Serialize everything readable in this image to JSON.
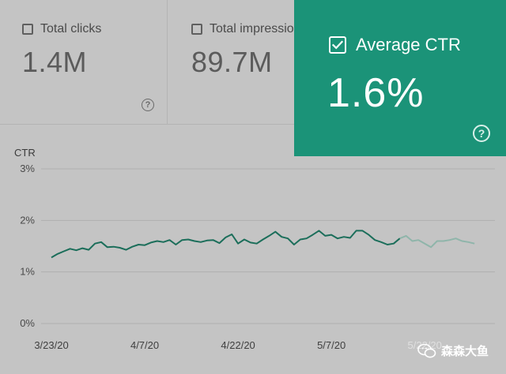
{
  "metrics": {
    "total_clicks": {
      "label": "Total clicks",
      "value": "1.4M",
      "help_icon": "?"
    },
    "total_impressions": {
      "label": "Total impressions",
      "value": "89.7M"
    },
    "average_ctr": {
      "label": "Average CTR",
      "value": "1.6%",
      "help_icon": "?",
      "checked": true,
      "color": "#1b9378"
    }
  },
  "watermark": {
    "text": "森森大鱼"
  },
  "chart_data": {
    "type": "line",
    "ylabel": "CTR",
    "y_ticks": [
      "3%",
      "2%",
      "1%",
      "0%"
    ],
    "ylim": [
      0,
      3
    ],
    "x_ticks": [
      "3/23/20",
      "4/7/20",
      "4/22/20",
      "5/7/20",
      "5/22/20"
    ],
    "series": [
      {
        "color": "#1b6e5a",
        "projected_from_index": 56,
        "points": [
          [
            "3/23/20",
            1.28
          ],
          [
            "3/24/20",
            1.35
          ],
          [
            "3/25/20",
            1.4
          ],
          [
            "3/26/20",
            1.45
          ],
          [
            "3/27/20",
            1.42
          ],
          [
            "3/28/20",
            1.46
          ],
          [
            "3/29/20",
            1.43
          ],
          [
            "3/30/20",
            1.55
          ],
          [
            "3/31/20",
            1.58
          ],
          [
            "4/1/20",
            1.48
          ],
          [
            "4/2/20",
            1.49
          ],
          [
            "4/3/20",
            1.47
          ],
          [
            "4/4/20",
            1.43
          ],
          [
            "4/5/20",
            1.49
          ],
          [
            "4/6/20",
            1.53
          ],
          [
            "4/7/20",
            1.52
          ],
          [
            "4/8/20",
            1.57
          ],
          [
            "4/9/20",
            1.6
          ],
          [
            "4/10/20",
            1.58
          ],
          [
            "4/11/20",
            1.62
          ],
          [
            "4/12/20",
            1.53
          ],
          [
            "4/13/20",
            1.62
          ],
          [
            "4/14/20",
            1.63
          ],
          [
            "4/15/20",
            1.6
          ],
          [
            "4/16/20",
            1.58
          ],
          [
            "4/17/20",
            1.61
          ],
          [
            "4/18/20",
            1.62
          ],
          [
            "4/19/20",
            1.56
          ],
          [
            "4/20/20",
            1.67
          ],
          [
            "4/21/20",
            1.73
          ],
          [
            "4/22/20",
            1.55
          ],
          [
            "4/23/20",
            1.63
          ],
          [
            "4/24/20",
            1.57
          ],
          [
            "4/25/20",
            1.55
          ],
          [
            "4/26/20",
            1.63
          ],
          [
            "4/27/20",
            1.7
          ],
          [
            "4/28/20",
            1.78
          ],
          [
            "4/29/20",
            1.68
          ],
          [
            "4/30/20",
            1.65
          ],
          [
            "5/1/20",
            1.53
          ],
          [
            "5/2/20",
            1.63
          ],
          [
            "5/3/20",
            1.65
          ],
          [
            "5/4/20",
            1.72
          ],
          [
            "5/5/20",
            1.8
          ],
          [
            "5/6/20",
            1.7
          ],
          [
            "5/7/20",
            1.72
          ],
          [
            "5/8/20",
            1.65
          ],
          [
            "5/9/20",
            1.68
          ],
          [
            "5/10/20",
            1.66
          ],
          [
            "5/11/20",
            1.8
          ],
          [
            "5/12/20",
            1.8
          ],
          [
            "5/13/20",
            1.72
          ],
          [
            "5/14/20",
            1.62
          ],
          [
            "5/15/20",
            1.58
          ],
          [
            "5/16/20",
            1.53
          ],
          [
            "5/17/20",
            1.55
          ],
          [
            "5/18/20",
            1.65
          ],
          [
            "5/19/20",
            1.7
          ],
          [
            "5/20/20",
            1.6
          ],
          [
            "5/21/20",
            1.62
          ],
          [
            "5/22/20",
            1.55
          ],
          [
            "5/23/20",
            1.48
          ],
          [
            "5/24/20",
            1.6
          ],
          [
            "5/25/20",
            1.6
          ],
          [
            "5/26/20",
            1.62
          ],
          [
            "5/27/20",
            1.65
          ],
          [
            "5/28/20",
            1.6
          ],
          [
            "5/29/20",
            1.58
          ],
          [
            "5/30/20",
            1.55
          ]
        ]
      }
    ]
  }
}
